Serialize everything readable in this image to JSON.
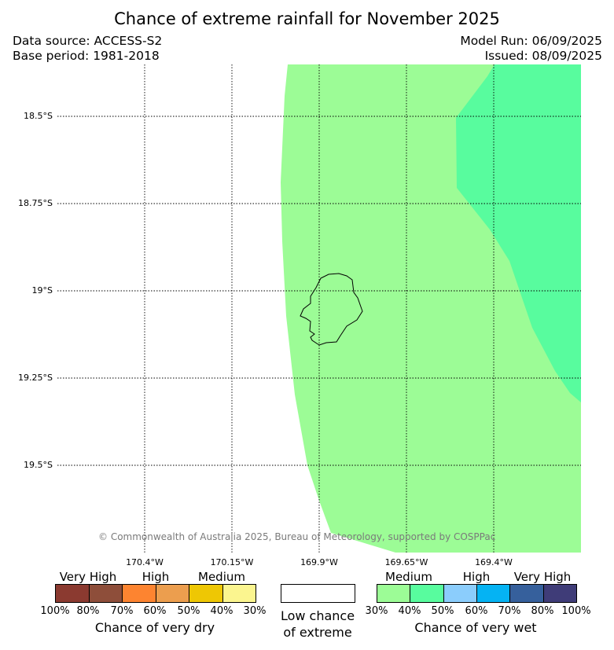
{
  "header": {
    "title": "Chance of extreme rainfall for November 2025",
    "data_source": "Data source: ACCESS-S2",
    "base_period": "Base period: 1981-2018",
    "model_run": "Model Run: 06/09/2025",
    "issued": "Issued: 08/09/2025"
  },
  "map": {
    "lat_labels": [
      "18.5°S",
      "18.75°S",
      "19°S",
      "19.25°S",
      "19.5°S"
    ],
    "lon_labels": [
      "170.4°W",
      "170.15°W",
      "169.9°W",
      "169.65°W",
      "169.4°W"
    ],
    "copyright": "© Commonwealth of Australia 2025, Bureau of Meteorology, supported by COSPPac",
    "zones": [
      {
        "category": "wet-medium",
        "range": "30%-40%",
        "color": "#9cfc96"
      },
      {
        "category": "wet-medium",
        "range": "40%-50%",
        "color": "#58fc9e"
      }
    ]
  },
  "legend": {
    "dry": {
      "categories": [
        "Very High",
        "High",
        "Medium"
      ],
      "colors": [
        "#8b3a30",
        "#8e4e3a",
        "#fd8430",
        "#ec9e4e",
        "#eec704",
        "#fbf58f"
      ],
      "ticks": [
        "100%",
        "80%",
        "70%",
        "60%",
        "50%",
        "40%",
        "30%"
      ],
      "caption": "Chance of very dry"
    },
    "low": {
      "caption_line1": "Low chance",
      "caption_line2": "of extreme",
      "color": "#ffffff"
    },
    "wet": {
      "categories": [
        "Medium",
        "High",
        "Very High"
      ],
      "colors": [
        "#9cfc96",
        "#58fc9e",
        "#8bcdfc",
        "#05b3f3",
        "#36609c",
        "#3f3c78"
      ],
      "ticks": [
        "30%",
        "40%",
        "50%",
        "60%",
        "70%",
        "80%",
        "100%"
      ],
      "caption": "Chance of very wet"
    }
  }
}
